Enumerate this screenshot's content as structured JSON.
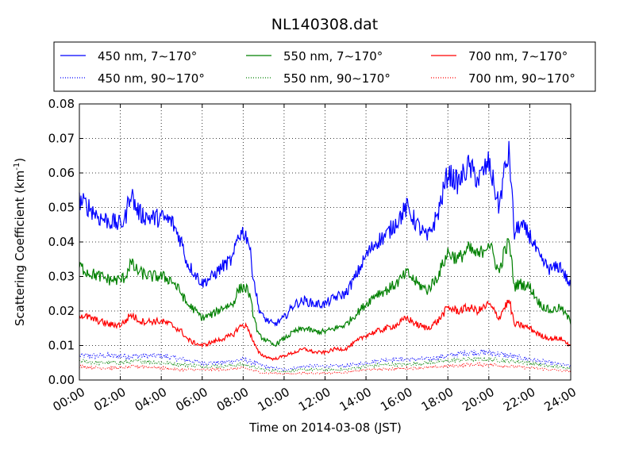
{
  "chart_data": {
    "type": "line",
    "title": "NL140308.dat",
    "xlabel": "Time on 2014-03-08 (JST)",
    "ylabel": "Scattering Coefficient (km",
    "ylabel_sup": "-1",
    "ylabel_end": ")",
    "xlim": [
      "00:00",
      "24:00"
    ],
    "ylim": [
      0.0,
      0.08
    ],
    "grid": true,
    "legend_position": "top, outside plot",
    "x_ticks": [
      "00:00",
      "02:00",
      "04:00",
      "06:00",
      "08:00",
      "10:00",
      "12:00",
      "14:00",
      "16:00",
      "18:00",
      "20:00",
      "22:00",
      "24:00"
    ],
    "y_ticks": [
      "0.00",
      "0.01",
      "0.02",
      "0.03",
      "0.04",
      "0.05",
      "0.06",
      "0.07",
      "0.08"
    ],
    "x_unit": "hour of day",
    "series": [
      {
        "name": "450 nm, 7∼170°",
        "color": "#0000ff",
        "style": "solid",
        "x": [
          0,
          0.5,
          1,
          1.5,
          2,
          2.25,
          2.5,
          2.75,
          3,
          3.5,
          4,
          4.5,
          5,
          5.25,
          5.5,
          6,
          6.5,
          7,
          7.5,
          7.75,
          8,
          8.25,
          8.5,
          8.75,
          9,
          9.5,
          10,
          10.5,
          11,
          11.5,
          12,
          12.5,
          13,
          13.5,
          14,
          14.5,
          15,
          15.5,
          16,
          16.5,
          17,
          17.5,
          18,
          18.5,
          19,
          19.5,
          20,
          20.5,
          20.75,
          21,
          21.25,
          21.5,
          22,
          22.5,
          23,
          23.5,
          24
        ],
        "y": [
          0.052,
          0.05,
          0.047,
          0.046,
          0.045,
          0.047,
          0.055,
          0.05,
          0.048,
          0.047,
          0.047,
          0.046,
          0.04,
          0.034,
          0.032,
          0.028,
          0.03,
          0.033,
          0.035,
          0.042,
          0.043,
          0.041,
          0.03,
          0.021,
          0.018,
          0.016,
          0.018,
          0.022,
          0.023,
          0.022,
          0.022,
          0.024,
          0.025,
          0.03,
          0.036,
          0.04,
          0.042,
          0.046,
          0.05,
          0.045,
          0.041,
          0.048,
          0.06,
          0.057,
          0.062,
          0.058,
          0.063,
          0.05,
          0.06,
          0.066,
          0.042,
          0.045,
          0.042,
          0.035,
          0.032,
          0.033,
          0.027
        ]
      },
      {
        "name": "550 nm, 7∼170°",
        "color": "#008000",
        "style": "solid",
        "x": [
          0,
          0.5,
          1,
          1.5,
          2,
          2.25,
          2.5,
          2.75,
          3,
          3.5,
          4,
          4.5,
          5,
          5.25,
          5.5,
          6,
          6.5,
          7,
          7.5,
          7.75,
          8,
          8.25,
          8.5,
          8.75,
          9,
          9.5,
          10,
          10.5,
          11,
          11.5,
          12,
          12.5,
          13,
          13.5,
          14,
          14.5,
          15,
          15.5,
          16,
          16.5,
          17,
          17.5,
          18,
          18.5,
          19,
          19.5,
          20,
          20.5,
          20.75,
          21,
          21.25,
          21.5,
          22,
          22.5,
          23,
          23.5,
          24
        ],
        "y": [
          0.033,
          0.031,
          0.03,
          0.029,
          0.029,
          0.03,
          0.034,
          0.032,
          0.031,
          0.03,
          0.03,
          0.029,
          0.025,
          0.022,
          0.021,
          0.018,
          0.019,
          0.021,
          0.022,
          0.026,
          0.027,
          0.026,
          0.019,
          0.013,
          0.012,
          0.01,
          0.012,
          0.014,
          0.015,
          0.014,
          0.014,
          0.015,
          0.016,
          0.019,
          0.022,
          0.025,
          0.026,
          0.028,
          0.031,
          0.028,
          0.026,
          0.03,
          0.037,
          0.035,
          0.038,
          0.036,
          0.04,
          0.031,
          0.037,
          0.04,
          0.027,
          0.028,
          0.027,
          0.022,
          0.02,
          0.021,
          0.017
        ]
      },
      {
        "name": "700 nm, 7∼170°",
        "color": "#ff0000",
        "style": "solid",
        "x": [
          0,
          0.5,
          1,
          1.5,
          2,
          2.25,
          2.5,
          2.75,
          3,
          3.5,
          4,
          4.5,
          5,
          5.25,
          5.5,
          6,
          6.5,
          7,
          7.5,
          7.75,
          8,
          8.25,
          8.5,
          8.75,
          9,
          9.5,
          10,
          10.5,
          11,
          11.5,
          12,
          12.5,
          13,
          13.5,
          14,
          14.5,
          15,
          15.5,
          16,
          16.5,
          17,
          17.5,
          18,
          18.5,
          19,
          19.5,
          20,
          20.5,
          20.75,
          21,
          21.25,
          21.5,
          22,
          22.5,
          23,
          23.5,
          24
        ],
        "y": [
          0.019,
          0.018,
          0.017,
          0.016,
          0.016,
          0.017,
          0.019,
          0.018,
          0.017,
          0.017,
          0.017,
          0.016,
          0.014,
          0.012,
          0.011,
          0.01,
          0.011,
          0.012,
          0.013,
          0.015,
          0.016,
          0.015,
          0.011,
          0.008,
          0.007,
          0.006,
          0.007,
          0.008,
          0.009,
          0.008,
          0.008,
          0.009,
          0.009,
          0.011,
          0.013,
          0.014,
          0.015,
          0.016,
          0.018,
          0.016,
          0.015,
          0.017,
          0.021,
          0.02,
          0.021,
          0.02,
          0.022,
          0.018,
          0.021,
          0.023,
          0.016,
          0.016,
          0.015,
          0.013,
          0.012,
          0.012,
          0.01
        ]
      },
      {
        "name": "450 nm, 90∼170°",
        "color": "#0000ff",
        "style": "dotted",
        "x": [
          0,
          1,
          2,
          3,
          4,
          5,
          6,
          7,
          8,
          9,
          10,
          11,
          12,
          13,
          14,
          15,
          16,
          17,
          18,
          19,
          20,
          21,
          22,
          23,
          24
        ],
        "y": [
          0.007,
          0.007,
          0.007,
          0.007,
          0.007,
          0.006,
          0.005,
          0.005,
          0.006,
          0.004,
          0.003,
          0.004,
          0.004,
          0.004,
          0.005,
          0.006,
          0.006,
          0.006,
          0.007,
          0.008,
          0.008,
          0.007,
          0.006,
          0.005,
          0.004
        ]
      },
      {
        "name": "550 nm, 90∼170°",
        "color": "#008000",
        "style": "dotted",
        "x": [
          0,
          1,
          2,
          3,
          4,
          5,
          6,
          7,
          8,
          9,
          10,
          11,
          12,
          13,
          14,
          15,
          16,
          17,
          18,
          19,
          20,
          21,
          22,
          23,
          24
        ],
        "y": [
          0.0055,
          0.005,
          0.005,
          0.0055,
          0.005,
          0.0045,
          0.004,
          0.004,
          0.0045,
          0.003,
          0.0025,
          0.003,
          0.003,
          0.003,
          0.004,
          0.0045,
          0.0045,
          0.005,
          0.0055,
          0.006,
          0.006,
          0.0055,
          0.005,
          0.004,
          0.0035
        ]
      },
      {
        "name": "700 nm, 90∼170°",
        "color": "#ff0000",
        "style": "dotted",
        "x": [
          0,
          1,
          2,
          3,
          4,
          5,
          6,
          7,
          8,
          9,
          10,
          11,
          12,
          13,
          14,
          15,
          16,
          17,
          18,
          19,
          20,
          21,
          22,
          23,
          24
        ],
        "y": [
          0.004,
          0.0035,
          0.0035,
          0.004,
          0.0035,
          0.003,
          0.003,
          0.003,
          0.0035,
          0.002,
          0.0018,
          0.002,
          0.002,
          0.0022,
          0.003,
          0.0032,
          0.0034,
          0.0036,
          0.004,
          0.0044,
          0.0045,
          0.004,
          0.0035,
          0.003,
          0.0025
        ]
      }
    ]
  }
}
